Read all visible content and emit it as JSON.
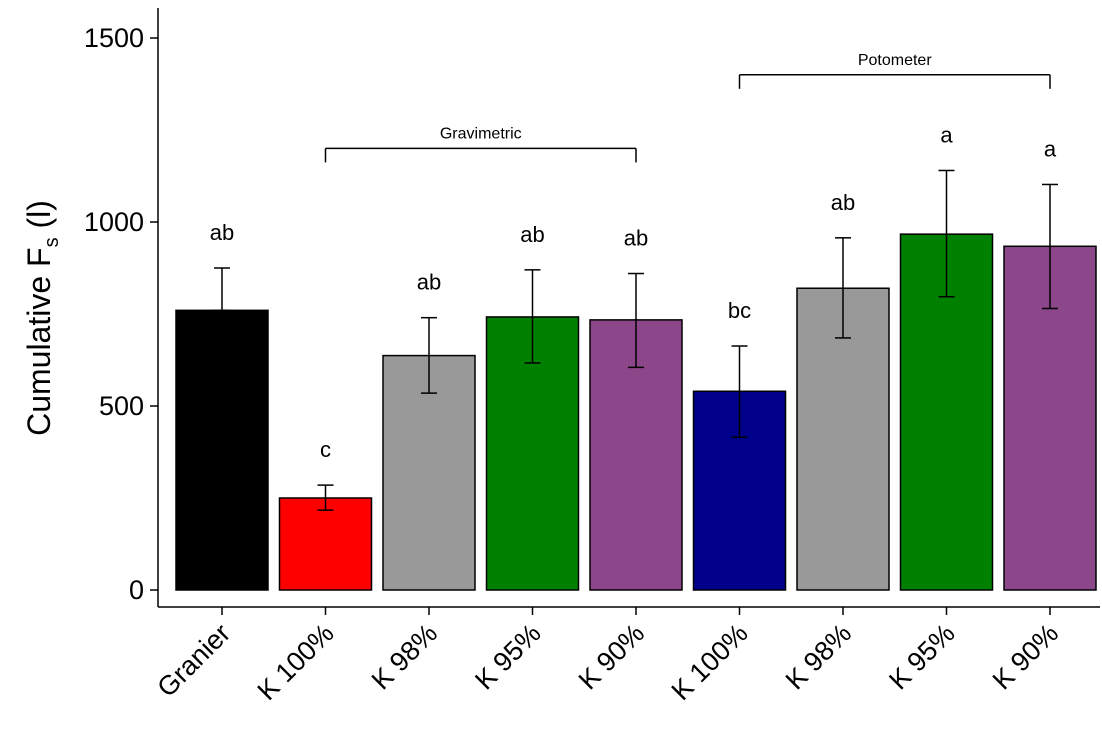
{
  "chart_data": {
    "type": "bar",
    "ylabel_main": "Cumulative F",
    "ylabel_sub": "s",
    "ylabel_unit": " (l)",
    "ylim": [
      0,
      1500
    ],
    "yticks": [
      0,
      500,
      1000,
      1500
    ],
    "categories": [
      "Granier",
      "K 100%",
      "K 98%",
      "K 95%",
      "K 90%",
      "K 100%",
      "K 98%",
      "K 95%",
      "K 90%"
    ],
    "values": [
      760,
      250,
      637,
      742,
      734,
      540,
      820,
      967,
      934
    ],
    "error_upper": [
      875,
      285,
      740,
      870,
      860,
      663,
      957,
      1140,
      1102
    ],
    "error_lower": [
      760,
      217,
      535,
      617,
      605,
      415,
      685,
      797,
      765
    ],
    "significance_letters": [
      "ab",
      "c",
      "ab",
      "ab",
      "ab",
      "bc",
      "ab",
      "a",
      "a"
    ],
    "bar_colors": [
      "#000000",
      "#ff0000",
      "#999999",
      "#008000",
      "#8b4789",
      "#00008b",
      "#999999",
      "#008000",
      "#8b4789"
    ],
    "groups": [
      {
        "label": "Gravimetric",
        "from": 1,
        "to": 4,
        "y": 1200
      },
      {
        "label": "Potometer",
        "from": 5,
        "to": 8,
        "y": 1400
      }
    ],
    "grid": false,
    "legend": "none"
  }
}
